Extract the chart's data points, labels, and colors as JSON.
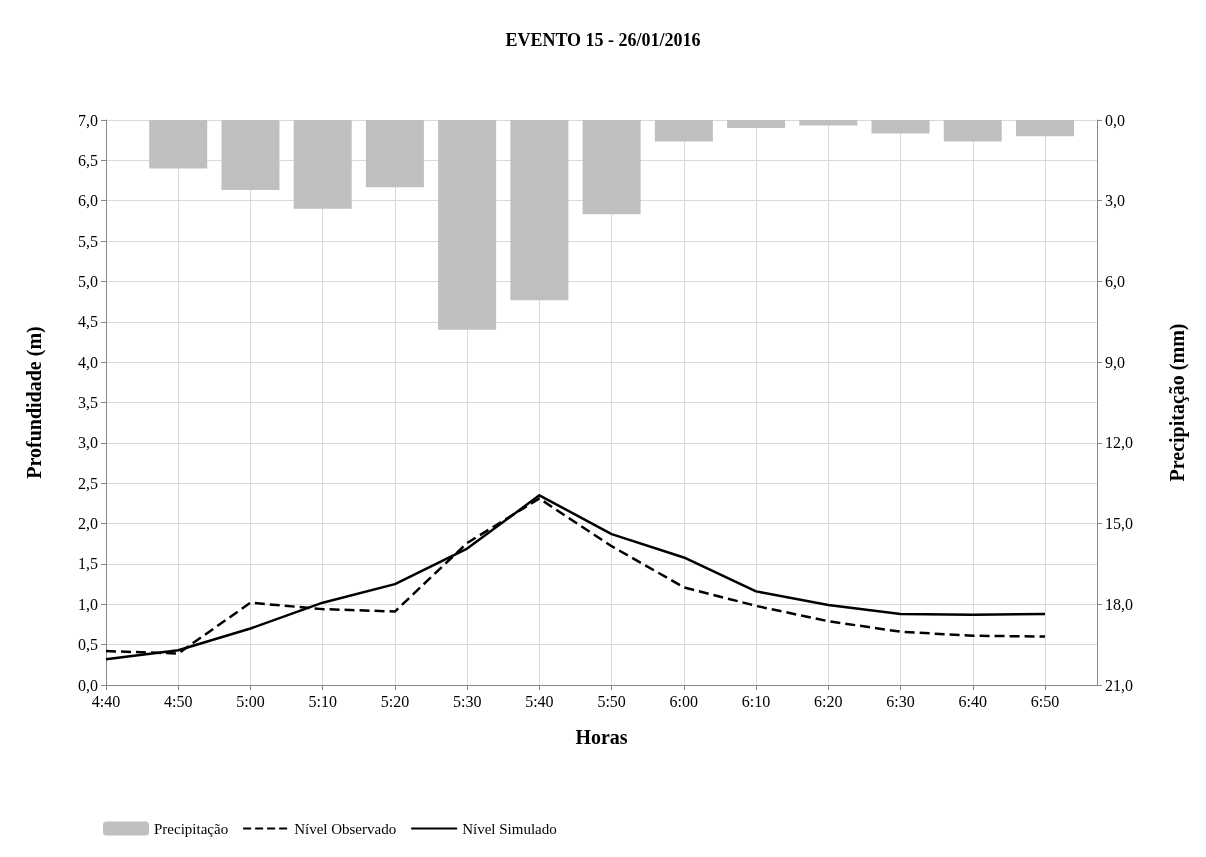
{
  "chart_data": {
    "type": "line",
    "title": "EVENTO 15 - 26/01/2016",
    "xlabel": "Horas",
    "ylabel": "Profundidade (m)",
    "y2label": "Precipitação (mm)",
    "categories": [
      "4:40",
      "4:50",
      "5:00",
      "5:10",
      "5:20",
      "5:30",
      "5:40",
      "5:50",
      "6:00",
      "6:10",
      "6:20",
      "6:30",
      "6:40",
      "6:50"
    ],
    "series": [
      {
        "name": "Precipitação",
        "type": "bar",
        "axis": "y2",
        "color": "#bfbfbf",
        "values": [
          0,
          1.8,
          2.6,
          3.3,
          2.5,
          7.8,
          6.7,
          3.5,
          0.8,
          0.3,
          0.2,
          0.5,
          0.8,
          0.6
        ]
      },
      {
        "name": "Nível Observado",
        "line_style": "dashed",
        "color": "#000000",
        "values": [
          0.42,
          0.39,
          1.02,
          0.94,
          0.91,
          1.76,
          2.31,
          1.72,
          1.21,
          0.98,
          0.79,
          0.66,
          0.61,
          0.6
        ]
      },
      {
        "name": "Nível Simulado",
        "line_style": "solid",
        "color": "#000000",
        "values": [
          0.32,
          0.43,
          0.7,
          1.02,
          1.25,
          1.69,
          2.35,
          1.87,
          1.58,
          1.16,
          0.99,
          0.88,
          0.87,
          0.88
        ]
      }
    ],
    "ylim": [
      0,
      7
    ],
    "yticks": [
      {
        "value": 0,
        "label": "0,0"
      },
      {
        "value": 0.5,
        "label": "0,5"
      },
      {
        "value": 1,
        "label": "1,0"
      },
      {
        "value": 1.5,
        "label": "1,5"
      },
      {
        "value": 2,
        "label": "2,0"
      },
      {
        "value": 2.5,
        "label": "2,5"
      },
      {
        "value": 3,
        "label": "3,0"
      },
      {
        "value": 3.5,
        "label": "3,5"
      },
      {
        "value": 4,
        "label": "4,0"
      },
      {
        "value": 4.5,
        "label": "4,5"
      },
      {
        "value": 5,
        "label": "5,0"
      },
      {
        "value": 5.5,
        "label": "5,5"
      },
      {
        "value": 6,
        "label": "6,0"
      },
      {
        "value": 6.5,
        "label": "6,5"
      },
      {
        "value": 7,
        "label": "7,0"
      }
    ],
    "y2lim": [
      21,
      0
    ],
    "y2ticks": [
      {
        "value": 0,
        "label": "0,0"
      },
      {
        "value": 3,
        "label": "3,0"
      },
      {
        "value": 6,
        "label": "6,0"
      },
      {
        "value": 9,
        "label": "9,0"
      },
      {
        "value": 12,
        "label": "12,0"
      },
      {
        "value": 15,
        "label": "15,0"
      },
      {
        "value": 18,
        "label": "18,0"
      },
      {
        "value": 21,
        "label": "21,0"
      }
    ],
    "grid": true,
    "legend": "bottom left",
    "marker": "none"
  }
}
